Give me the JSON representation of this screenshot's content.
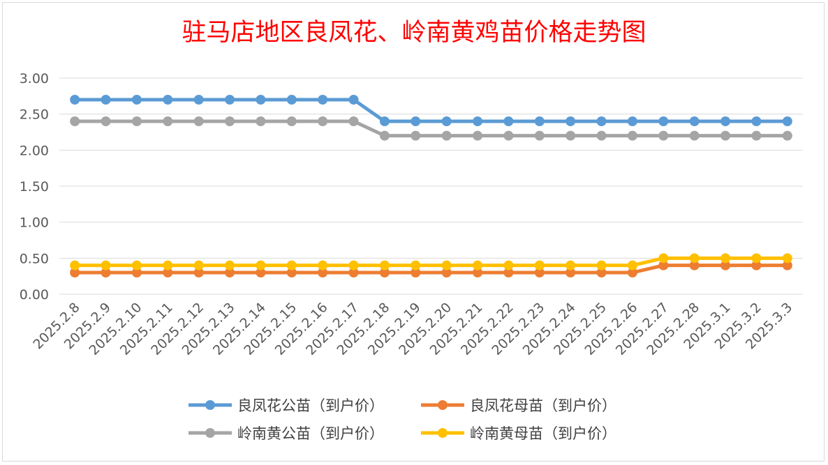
{
  "chart_data": {
    "type": "line",
    "title": "驻马店地区良凤花、岭南黄鸡苗价格走势图",
    "xlabel": "",
    "ylabel": "",
    "ylim": [
      0,
      3
    ],
    "yticks": [
      "0.00",
      "0.50",
      "1.00",
      "1.50",
      "2.00",
      "2.50",
      "3.00"
    ],
    "grid": true,
    "legend_position": "bottom",
    "categories": [
      "2025.2.8",
      "2025.2.9",
      "2025.2.10",
      "2025.2.11",
      "2025.2.12",
      "2025.2.13",
      "2025.2.14",
      "2025.2.15",
      "2025.2.16",
      "2025.2.17",
      "2025.2.18",
      "2025.2.19",
      "2025.2.20",
      "2025.2.21",
      "2025.2.22",
      "2025.2.23",
      "2025.2.24",
      "2025.2.25",
      "2025.2.26",
      "2025.2.27",
      "2025.2.28",
      "2025.3.1",
      "2025.3.2",
      "2025.3.3"
    ],
    "series": [
      {
        "name": "良凤花公苗（到户价）",
        "color": "#5b9bd5",
        "values": [
          2.7,
          2.7,
          2.7,
          2.7,
          2.7,
          2.7,
          2.7,
          2.7,
          2.7,
          2.7,
          2.4,
          2.4,
          2.4,
          2.4,
          2.4,
          2.4,
          2.4,
          2.4,
          2.4,
          2.4,
          2.4,
          2.4,
          2.4,
          2.4
        ]
      },
      {
        "name": "良凤花母苗（到户价）",
        "color": "#ed7d31",
        "values": [
          0.3,
          0.3,
          0.3,
          0.3,
          0.3,
          0.3,
          0.3,
          0.3,
          0.3,
          0.3,
          0.3,
          0.3,
          0.3,
          0.3,
          0.3,
          0.3,
          0.3,
          0.3,
          0.3,
          0.4,
          0.4,
          0.4,
          0.4,
          0.4
        ]
      },
      {
        "name": "岭南黄公苗（到户价）",
        "color": "#a5a5a5",
        "values": [
          2.4,
          2.4,
          2.4,
          2.4,
          2.4,
          2.4,
          2.4,
          2.4,
          2.4,
          2.4,
          2.2,
          2.2,
          2.2,
          2.2,
          2.2,
          2.2,
          2.2,
          2.2,
          2.2,
          2.2,
          2.2,
          2.2,
          2.2,
          2.2
        ]
      },
      {
        "name": "岭南黄母苗（到户价）",
        "color": "#ffc000",
        "values": [
          0.4,
          0.4,
          0.4,
          0.4,
          0.4,
          0.4,
          0.4,
          0.4,
          0.4,
          0.4,
          0.4,
          0.4,
          0.4,
          0.4,
          0.4,
          0.4,
          0.4,
          0.4,
          0.4,
          0.5,
          0.5,
          0.5,
          0.5,
          0.5
        ]
      }
    ],
    "title_color": "#ff0000"
  }
}
